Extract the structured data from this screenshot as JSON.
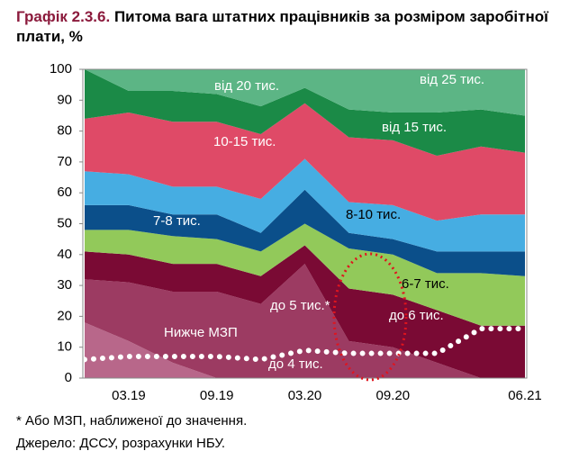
{
  "chart_data": {
    "type": "stacked_area",
    "title_prefix": "Графік 2.3.6.",
    "title": "Питома вага штатних працівників за розміром заробітної плати, %",
    "categories": [
      null,
      "03.19",
      null,
      "09.19",
      null,
      "03.20",
      null,
      "09.20",
      null,
      null,
      "06.21"
    ],
    "ylim": [
      0,
      100
    ],
    "yticks": [
      0,
      10,
      20,
      30,
      40,
      50,
      60,
      70,
      80,
      90,
      100
    ],
    "series": [
      {
        "color": "#b8678a",
        "values": [
          18,
          12,
          5,
          0,
          0,
          0,
          0,
          0,
          0,
          0,
          0
        ]
      },
      {
        "color": "#9c3b62",
        "values": [
          14,
          19,
          23,
          28,
          24,
          37,
          12,
          10,
          5,
          0,
          0
        ]
      },
      {
        "color": "#7a0a34",
        "values": [
          9,
          9,
          9,
          9,
          9,
          6,
          17,
          17,
          17,
          17,
          17
        ]
      },
      {
        "color": "#92c95a",
        "values": [
          7,
          8,
          9,
          8,
          8,
          7,
          13,
          13,
          12,
          17,
          16
        ]
      },
      {
        "color": "#0b4f8a",
        "values": [
          8,
          8,
          7,
          8,
          6,
          11,
          5,
          5,
          7,
          7,
          8
        ]
      },
      {
        "color": "#46ade2",
        "values": [
          11,
          10,
          9,
          9,
          11,
          10,
          10,
          11,
          10,
          12,
          12
        ]
      },
      {
        "color": "#df4a67",
        "values": [
          17,
          20,
          21,
          21,
          21,
          18,
          21,
          21,
          21,
          22,
          20
        ]
      },
      {
        "color": "#1b8a47",
        "values": [
          16,
          7,
          10,
          9,
          9,
          5,
          9,
          9,
          14,
          12,
          12
        ]
      },
      {
        "color": "#5cb585",
        "values": [
          0,
          7,
          7,
          8,
          12,
          6,
          13,
          14,
          14,
          13,
          15
        ]
      }
    ],
    "line": {
      "color": "#ffffff",
      "values": [
        6,
        7,
        7,
        7,
        6,
        9,
        8,
        8,
        8,
        16,
        16
      ]
    },
    "annotations": [
      "від 20 тис.",
      "10-15 тис.",
      "7-8 тис.",
      "до 5 тис.*",
      "Нижче МЗП",
      "до 4 тис.",
      "від 25 тис.",
      "від 15 тис.",
      "8-10 тис.",
      "6-7 тис.",
      "до 6 тис."
    ],
    "notes": [
      "* Або МЗП, наближеної до значення.",
      "Джерело: ДССУ, розрахунки НБУ."
    ]
  }
}
